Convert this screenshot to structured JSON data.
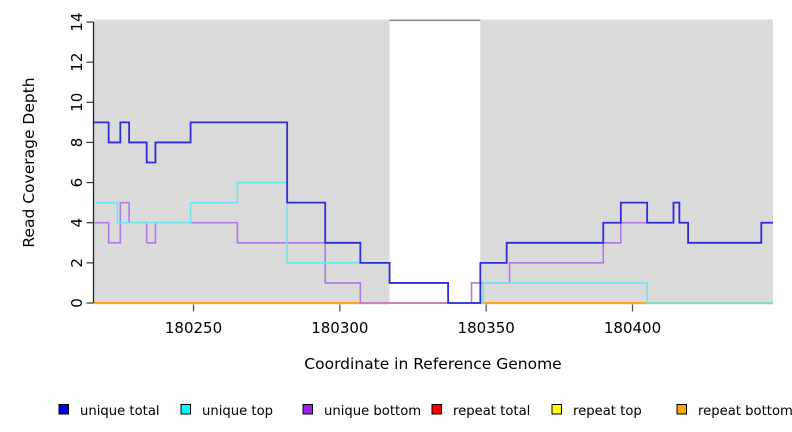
{
  "chart_data": {
    "type": "line",
    "subtype": "step-coverage",
    "title": "",
    "xlabel": "Coordinate in Reference Genome",
    "ylabel": "Read Coverage Depth",
    "xlim": [
      180216,
      180448
    ],
    "ylim": [
      0,
      14
    ],
    "x_ticks": [
      180250,
      180300,
      180350,
      180400
    ],
    "y_ticks": [
      0,
      2,
      4,
      6,
      8,
      10,
      12,
      14
    ],
    "grid": false,
    "plot_background": "#dbdbdb",
    "gap_band": {
      "x_start": 180317,
      "x_end": 180348,
      "fill": "#ffffff",
      "top_border_color": "#8a8a8a"
    },
    "series": [
      {
        "name": "repeat total",
        "color": "#e03131",
        "points": [
          [
            180216,
            0
          ]
        ]
      },
      {
        "name": "repeat top",
        "color": "#f0ee22",
        "points": [
          [
            180216,
            0
          ]
        ]
      },
      {
        "name": "repeat bottom",
        "color": "#ffa51e",
        "points": [
          [
            180216,
            0
          ]
        ]
      },
      {
        "name": "unique bottom",
        "color": "#b478e4",
        "points": [
          [
            180216,
            4
          ],
          [
            180221,
            3
          ],
          [
            180225,
            5
          ],
          [
            180228,
            4
          ],
          [
            180234,
            3
          ],
          [
            180237,
            4
          ],
          [
            180265,
            3
          ],
          [
            180295,
            1
          ],
          [
            180307,
            0
          ],
          [
            180345,
            1
          ],
          [
            180358,
            2
          ],
          [
            180390,
            3
          ],
          [
            180396,
            4
          ],
          [
            180414,
            5
          ],
          [
            180416,
            4
          ],
          [
            180419,
            3
          ],
          [
            180444,
            4
          ]
        ]
      },
      {
        "name": "unique top",
        "color": "#6ee6f0",
        "points": [
          [
            180216,
            5
          ],
          [
            180224,
            4
          ],
          [
            180249,
            5
          ],
          [
            180265,
            6
          ],
          [
            180282,
            2
          ],
          [
            180317,
            1
          ],
          [
            180337,
            0
          ],
          [
            180349,
            1
          ],
          [
            180405,
            0
          ]
        ]
      },
      {
        "name": "unique total",
        "color": "#2e2ed8",
        "points": [
          [
            180216,
            9
          ],
          [
            180221,
            8
          ],
          [
            180225,
            9
          ],
          [
            180228,
            8
          ],
          [
            180234,
            7
          ],
          [
            180237,
            8
          ],
          [
            180249,
            9
          ],
          [
            180282,
            5
          ],
          [
            180295,
            3
          ],
          [
            180307,
            2
          ],
          [
            180317,
            1
          ],
          [
            180337,
            0
          ],
          [
            180348,
            2
          ],
          [
            180357,
            3
          ],
          [
            180390,
            4
          ],
          [
            180396,
            5
          ],
          [
            180405,
            4
          ],
          [
            180414,
            5
          ],
          [
            180416,
            4
          ],
          [
            180419,
            3
          ],
          [
            180444,
            4
          ]
        ]
      }
    ],
    "legend_position": "bottom"
  },
  "legend": {
    "items": [
      {
        "label": "unique total",
        "color": "#0000ee"
      },
      {
        "label": "unique top",
        "color": "#00ffff"
      },
      {
        "label": "unique bottom",
        "color": "#a020f0"
      },
      {
        "label": "repeat total",
        "color": "#ff0000"
      },
      {
        "label": "repeat top",
        "color": "#ffff00"
      },
      {
        "label": "repeat bottom",
        "color": "#ffa500"
      }
    ]
  }
}
